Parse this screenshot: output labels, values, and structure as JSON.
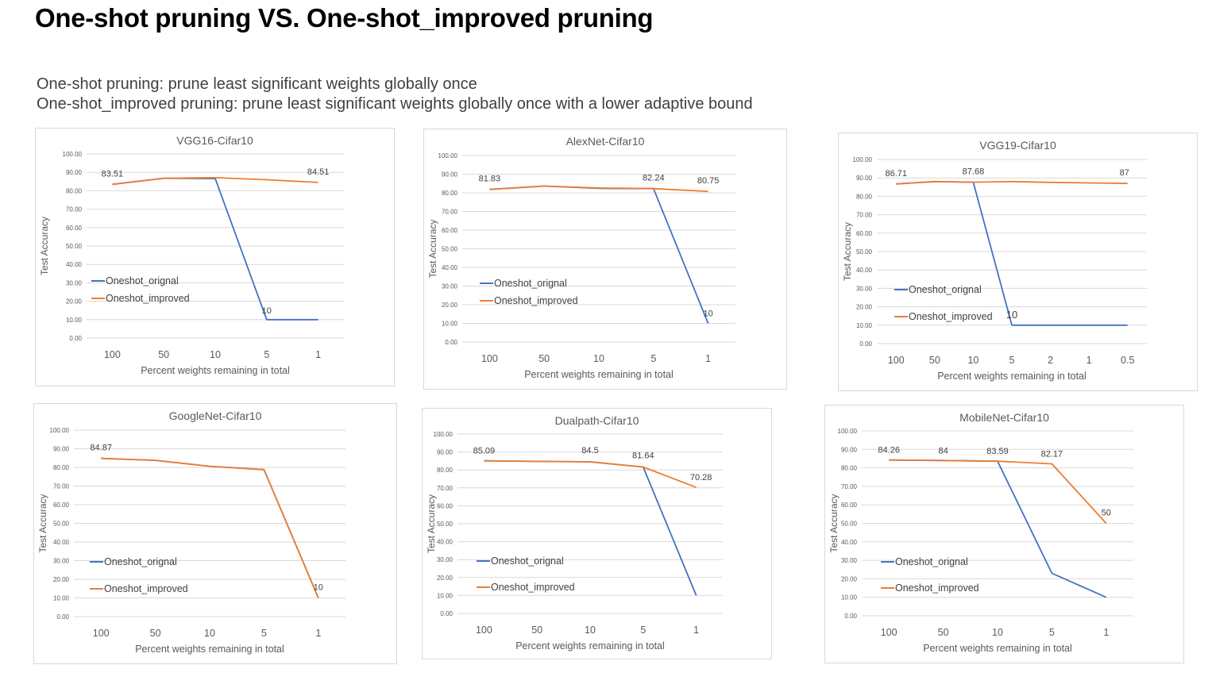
{
  "page": {
    "title": "One-shot pruning VS. One-shot_improved pruning",
    "desc_line1": "One-shot pruning:  prune least significant weights globally once",
    "desc_line2": "One-shot_improved pruning:  prune least significant weights globally once with a lower adaptive bound"
  },
  "colors": {
    "original": "#4472C4",
    "improved": "#ED7D31",
    "grid": "#d9d9d9",
    "tick_text": "#595959"
  },
  "chart_data": [
    {
      "type": "line",
      "title": "VGG16-Cifar10",
      "xlabel": "Percent weights remaining in total",
      "ylabel": "Test Accuracy",
      "categories": [
        "100",
        "50",
        "10",
        "5",
        "1"
      ],
      "ylim": [
        0,
        100
      ],
      "yticks": [
        "0.00",
        "10.00",
        "20.00",
        "30.00",
        "40.00",
        "50.00",
        "60.00",
        "70.00",
        "80.00",
        "90.00",
        "100.00"
      ],
      "grid": true,
      "legend": "inside-lower-left",
      "series": [
        {
          "name": "Oneshot_orignal",
          "values": [
            83.51,
            86.8,
            86.6,
            10,
            10
          ]
        },
        {
          "name": "Oneshot_improved",
          "values": [
            83.51,
            86.8,
            87.1,
            86.0,
            84.51
          ]
        }
      ],
      "labels": [
        {
          "series": 1,
          "index": 0,
          "text": "83.51"
        },
        {
          "series": 1,
          "index": 4,
          "text": "84.51"
        },
        {
          "series": 0,
          "index": 3,
          "text": "10"
        }
      ]
    },
    {
      "type": "line",
      "title": "AlexNet-Cifar10",
      "xlabel": "Percent weights remaining in total",
      "ylabel": "Test Accuracy",
      "categories": [
        "100",
        "50",
        "10",
        "5",
        "1"
      ],
      "ylim": [
        0,
        100
      ],
      "yticks": [
        "0.00",
        "10.00",
        "20.00",
        "30.00",
        "40.00",
        "50.00",
        "60.00",
        "70.00",
        "80.00",
        "90.00",
        "100.00"
      ],
      "grid": true,
      "legend": "inside-lower-left",
      "series": [
        {
          "name": "Oneshot_orignal",
          "values": [
            81.83,
            83.6,
            82.4,
            82.24,
            10
          ]
        },
        {
          "name": "Oneshot_improved",
          "values": [
            81.83,
            83.6,
            82.6,
            82.24,
            80.75
          ]
        }
      ],
      "labels": [
        {
          "series": 1,
          "index": 0,
          "text": "81.83"
        },
        {
          "series": 1,
          "index": 3,
          "text": "82.24"
        },
        {
          "series": 1,
          "index": 4,
          "text": "80.75"
        },
        {
          "series": 0,
          "index": 4,
          "text": "10"
        }
      ]
    },
    {
      "type": "line",
      "title": "VGG19-Cifar10",
      "xlabel": "Percent weights remaining in total",
      "ylabel": "Test Accuracy",
      "categories": [
        "100",
        "50",
        "10",
        "5",
        "2",
        "1",
        "0.5"
      ],
      "ylim": [
        0,
        100
      ],
      "yticks": [
        "0.00",
        "10.00",
        "20.00",
        "30.00",
        "40.00",
        "50.00",
        "60.00",
        "70.00",
        "80.00",
        "90.00",
        "100.00"
      ],
      "grid": true,
      "legend": "inside-lower-left",
      "series": [
        {
          "name": "Oneshot_orignal",
          "values": [
            86.71,
            88.0,
            87.68,
            10,
            10,
            10,
            10
          ]
        },
        {
          "name": "Oneshot_improved",
          "values": [
            86.71,
            88.0,
            87.68,
            88.0,
            87.6,
            87.3,
            87
          ]
        }
      ],
      "labels": [
        {
          "series": 1,
          "index": 0,
          "text": "86.71"
        },
        {
          "series": 1,
          "index": 2,
          "text": "87.68"
        },
        {
          "series": 1,
          "index": 6,
          "text": "87"
        },
        {
          "series": 0,
          "index": 3,
          "text": "10"
        }
      ]
    },
    {
      "type": "line",
      "title": "GoogleNet-Cifar10",
      "xlabel": "Percent weights remaining in total",
      "ylabel": "Test Accuracy",
      "categories": [
        "100",
        "50",
        "10",
        "5",
        "1"
      ],
      "ylim": [
        0,
        100
      ],
      "yticks": [
        "0.00",
        "10.00",
        "20.00",
        "30.00",
        "40.00",
        "50.00",
        "60.00",
        "70.00",
        "80.00",
        "90.00",
        "100.00"
      ],
      "grid": true,
      "legend": "inside-lower-left",
      "series": [
        {
          "name": "Oneshot_orignal",
          "values": [
            84.87,
            83.8,
            80.6,
            78.8,
            10
          ]
        },
        {
          "name": "Oneshot_improved",
          "values": [
            84.87,
            83.8,
            80.6,
            78.8,
            10
          ]
        }
      ],
      "labels": [
        {
          "series": 1,
          "index": 0,
          "text": "84.87"
        },
        {
          "series": 1,
          "index": 4,
          "text": "10"
        }
      ]
    },
    {
      "type": "line",
      "title": "Dualpath-Cifar10",
      "xlabel": "Percent weights remaining in total",
      "ylabel": "Test Accuracy",
      "categories": [
        "100",
        "50",
        "10",
        "5",
        "1"
      ],
      "ylim": [
        0,
        100
      ],
      "yticks": [
        "0.00",
        "10.00",
        "20.00",
        "30.00",
        "40.00",
        "50.00",
        "60.00",
        "70.00",
        "80.00",
        "90.00",
        "100.00"
      ],
      "grid": true,
      "legend": "inside-lower-left",
      "series": [
        {
          "name": "Oneshot_orignal",
          "values": [
            85.09,
            84.8,
            84.5,
            81.64,
            10
          ]
        },
        {
          "name": "Oneshot_improved",
          "values": [
            85.09,
            84.8,
            84.5,
            81.64,
            70.28
          ]
        }
      ],
      "labels": [
        {
          "series": 1,
          "index": 0,
          "text": "85.09"
        },
        {
          "series": 1,
          "index": 2,
          "text": "84.5"
        },
        {
          "series": 1,
          "index": 3,
          "text": "81.64"
        },
        {
          "series": 1,
          "index": 4,
          "text": "70.28"
        }
      ]
    },
    {
      "type": "line",
      "title": "MobileNet-Cifar10",
      "xlabel": "Percent weights remaining in total",
      "ylabel": "Test Accuracy",
      "categories": [
        "100",
        "50",
        "10",
        "5",
        "1"
      ],
      "ylim": [
        0,
        100
      ],
      "yticks": [
        "0.00",
        "10.00",
        "20.00",
        "30.00",
        "40.00",
        "50.00",
        "60.00",
        "70.00",
        "80.00",
        "90.00",
        "100.00"
      ],
      "grid": true,
      "legend": "inside-lower-left",
      "series": [
        {
          "name": "Oneshot_orignal",
          "values": [
            84.26,
            84,
            83.59,
            23,
            10
          ]
        },
        {
          "name": "Oneshot_improved",
          "values": [
            84.26,
            84,
            83.59,
            82.17,
            50
          ]
        }
      ],
      "labels": [
        {
          "series": 1,
          "index": 0,
          "text": "84.26"
        },
        {
          "series": 1,
          "index": 1,
          "text": "84"
        },
        {
          "series": 1,
          "index": 2,
          "text": "83.59"
        },
        {
          "series": 1,
          "index": 3,
          "text": "82.17"
        },
        {
          "series": 1,
          "index": 4,
          "text": "50"
        }
      ]
    }
  ]
}
